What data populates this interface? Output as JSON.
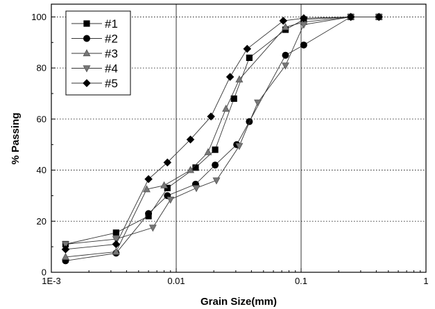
{
  "chart_data": {
    "type": "line",
    "xlabel": "Grain Size(mm)",
    "ylabel": "% Passing",
    "xscale": "log",
    "xlim": [
      0.001,
      1
    ],
    "ylim": [
      0,
      105
    ],
    "x_ticks": [
      {
        "value": 0.001,
        "label": "1E-3"
      },
      {
        "value": 0.01,
        "label": "0.01"
      },
      {
        "value": 0.1,
        "label": "0.1"
      },
      {
        "value": 1,
        "label": "1"
      }
    ],
    "y_ticks": [
      0,
      20,
      40,
      60,
      80,
      100
    ],
    "grid": "dotted horizontal lines, solid vertical lines at decades",
    "legend_position": "top-left",
    "series": [
      {
        "name": "#1",
        "marker": "square",
        "x": [
          0.0013,
          0.0033,
          0.006,
          0.0085,
          0.0143,
          0.0205,
          0.029,
          0.0385,
          0.075,
          0.105,
          0.25,
          0.42
        ],
        "y": [
          11,
          15.5,
          22,
          33,
          41,
          48,
          68,
          84,
          95,
          99,
          100,
          100
        ]
      },
      {
        "name": "#2",
        "marker": "circle",
        "x": [
          0.0013,
          0.0033,
          0.006,
          0.0085,
          0.0143,
          0.0205,
          0.0305,
          0.0385,
          0.075,
          0.105,
          0.25,
          0.42
        ],
        "y": [
          4.5,
          7.5,
          23,
          30,
          34.5,
          42,
          50,
          59,
          85,
          89,
          100,
          100
        ]
      },
      {
        "name": "#3",
        "marker": "triangle-up",
        "x": [
          0.0013,
          0.0033,
          0.0058,
          0.008,
          0.013,
          0.018,
          0.025,
          0.032,
          0.075,
          0.105,
          0.25,
          0.42
        ],
        "y": [
          6,
          8,
          32.5,
          34,
          40,
          47,
          64,
          75.5,
          96,
          98,
          100,
          100
        ]
      },
      {
        "name": "#4",
        "marker": "triangle-down",
        "x": [
          0.0013,
          0.0033,
          0.0065,
          0.009,
          0.0145,
          0.021,
          0.032,
          0.045,
          0.075,
          0.105,
          0.25,
          0.42
        ],
        "y": [
          11,
          13,
          17.5,
          28.5,
          33,
          36,
          49.5,
          66.5,
          81,
          97,
          100,
          100
        ]
      },
      {
        "name": "#5",
        "marker": "diamond",
        "x": [
          0.0013,
          0.0033,
          0.006,
          0.0085,
          0.013,
          0.019,
          0.027,
          0.037,
          0.072,
          0.105,
          0.25,
          0.42
        ],
        "y": [
          9,
          11,
          36.5,
          43,
          52,
          61,
          76.5,
          87.5,
          98.5,
          99.5,
          100,
          100
        ]
      }
    ]
  }
}
